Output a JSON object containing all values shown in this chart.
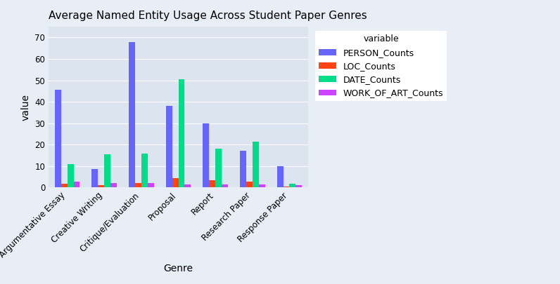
{
  "title": "Average Named Entity Usage Across Student Paper Genres",
  "xlabel": "Genre",
  "ylabel": "value",
  "legend_title": "variable",
  "background_color": "#e8eef5",
  "plot_bg_color": "#dce4f0",
  "genres": [
    "Argumentative Essay",
    "Creative Writing",
    "Critique/Evaluation",
    "Proposal",
    "Report",
    "Research Paper",
    "Response Paper"
  ],
  "series": {
    "PERSON_Counts": {
      "color": "#6666ff",
      "values": [
        45.5,
        8.5,
        68.0,
        38.0,
        30.0,
        17.0,
        10.0
      ]
    },
    "LOC_Counts": {
      "color": "#ff4411",
      "values": [
        1.8,
        1.2,
        2.0,
        4.2,
        3.5,
        2.8,
        0.3
      ]
    },
    "DATE_Counts": {
      "color": "#00dd88",
      "values": [
        10.8,
        15.5,
        15.8,
        50.5,
        18.2,
        21.5,
        1.8
      ]
    },
    "WORK_OF_ART_Counts": {
      "color": "#cc44ff",
      "values": [
        2.8,
        2.0,
        2.0,
        1.5,
        1.5,
        1.5,
        1.2
      ]
    }
  },
  "ylim": [
    0,
    75
  ],
  "yticks": [
    0,
    10,
    20,
    30,
    40,
    50,
    60,
    70
  ],
  "grid_color": "#ffffff",
  "title_fontsize": 11,
  "axis_label_fontsize": 10,
  "tick_fontsize": 8.5,
  "legend_fontsize": 9
}
